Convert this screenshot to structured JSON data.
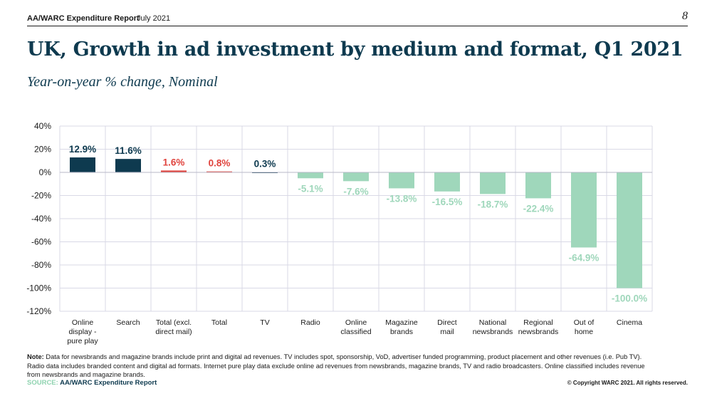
{
  "header": {
    "report_name": "AA/WARC Expenditure Report",
    "date": "July 2021",
    "page_number": "8"
  },
  "title": "UK, Growth in ad investment by medium and format, Q1 2021",
  "subtitle": "Year-on-year % change, Nominal",
  "colors": {
    "positive_dark": "#0e3a4f",
    "positive_red": "#e0443e",
    "negative_green": "#9fd7bb",
    "grid": "#d9d9e6"
  },
  "chart_data": {
    "type": "bar",
    "categories": [
      [
        "Online",
        "display -",
        "pure play"
      ],
      [
        "Search"
      ],
      [
        "Total (excl.",
        "direct mail)"
      ],
      [
        "Total"
      ],
      [
        "TV"
      ],
      [
        "Radio"
      ],
      [
        "Online",
        "classified"
      ],
      [
        "Magazine",
        "brands"
      ],
      [
        "Direct",
        "mail"
      ],
      [
        "National",
        "newsbrands"
      ],
      [
        "Regional",
        "newsbrands"
      ],
      [
        "Out of",
        "home"
      ],
      [
        "Cinema"
      ]
    ],
    "values": [
      12.9,
      11.6,
      1.6,
      0.8,
      0.3,
      -5.1,
      -7.6,
      -13.8,
      -16.5,
      -18.7,
      -22.4,
      -64.9,
      -100.0
    ],
    "data_labels": [
      "12.9%",
      "11.6%",
      "1.6%",
      "0.8%",
      "0.3%",
      "-5.1%",
      "-7.6%",
      "-13.8%",
      "-16.5%",
      "-18.7%",
      "-22.4%",
      "-64.9%",
      "-100.0%"
    ],
    "bar_colors": [
      "#0e3a4f",
      "#0e3a4f",
      "#e0443e",
      "#e0443e",
      "#0e3a4f",
      "#9fd7bb",
      "#9fd7bb",
      "#9fd7bb",
      "#9fd7bb",
      "#9fd7bb",
      "#9fd7bb",
      "#9fd7bb",
      "#9fd7bb"
    ],
    "y_ticks": [
      40,
      20,
      0,
      -20,
      -40,
      -60,
      -80,
      -100,
      -120
    ],
    "y_tick_labels": [
      "40%",
      "20%",
      "0%",
      "-20%",
      "-40%",
      "-60%",
      "-80%",
      "-100%",
      "-120%"
    ],
    "ylim": [
      -120,
      40
    ],
    "xlabel": "",
    "ylabel": "",
    "grid": true
  },
  "note": {
    "label": "Note:",
    "text": "Data for newsbrands and magazine brands include print and digital ad revenues. TV includes spot, sponsorship, VoD, advertiser funded programming, product placement and other revenues (i.e. Pub TV). Radio data includes branded content and digital ad formats. Internet pure play data exclude online ad revenues from newsbrands, magazine brands, TV and radio broadcasters. Online classified includes revenue from newsbrands and magazine brands."
  },
  "source": {
    "label": "SOURCE:",
    "value": "AA/WARC Expenditure Report"
  },
  "copyright": "© Copyright WARC 2021. All rights reserved."
}
